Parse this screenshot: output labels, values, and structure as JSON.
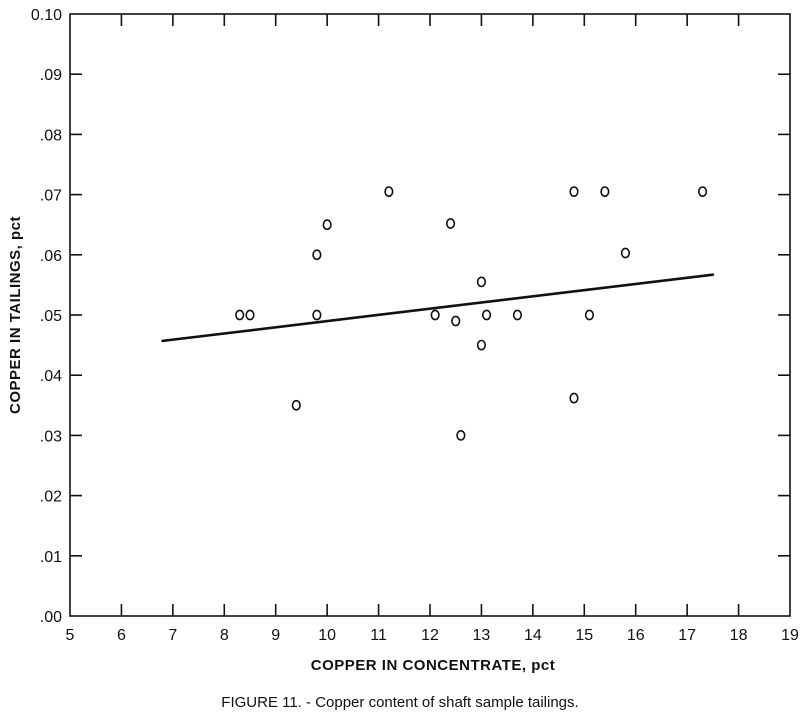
{
  "figure": {
    "caption": "FIGURE 11. - Copper content of shaft sample tailings."
  },
  "chart_data": {
    "type": "scatter",
    "title": "",
    "xlabel": "COPPER IN CONCENTRATE, pct",
    "ylabel": "COPPER IN TAILINGS, pct",
    "xlim": [
      5,
      19
    ],
    "ylim": [
      0.0,
      0.1
    ],
    "x_ticks": [
      5,
      6,
      7,
      8,
      9,
      10,
      11,
      12,
      13,
      14,
      15,
      16,
      17,
      18,
      19
    ],
    "x_tick_labels": [
      "5",
      "6",
      "7",
      "8",
      "9",
      "10",
      "11",
      "12",
      "13",
      "14",
      "15",
      "16",
      "17",
      "18",
      "19"
    ],
    "y_ticks": [
      0.0,
      0.01,
      0.02,
      0.03,
      0.04,
      0.05,
      0.06,
      0.07,
      0.08,
      0.09,
      0.1
    ],
    "y_tick_labels": [
      ".00",
      ".01",
      ".02",
      ".03",
      ".04",
      ".05",
      ".06",
      ".07",
      ".08",
      ".09",
      "0.10"
    ],
    "grid": false,
    "points": [
      {
        "x": 8.3,
        "y": 0.05
      },
      {
        "x": 8.5,
        "y": 0.05
      },
      {
        "x": 9.4,
        "y": 0.035
      },
      {
        "x": 9.8,
        "y": 0.06
      },
      {
        "x": 9.8,
        "y": 0.05
      },
      {
        "x": 10.0,
        "y": 0.065
      },
      {
        "x": 11.2,
        "y": 0.0705
      },
      {
        "x": 12.1,
        "y": 0.05
      },
      {
        "x": 12.4,
        "y": 0.0652
      },
      {
        "x": 12.5,
        "y": 0.049
      },
      {
        "x": 12.6,
        "y": 0.03
      },
      {
        "x": 13.0,
        "y": 0.0555
      },
      {
        "x": 13.0,
        "y": 0.045
      },
      {
        "x": 13.1,
        "y": 0.05
      },
      {
        "x": 13.7,
        "y": 0.05
      },
      {
        "x": 14.8,
        "y": 0.0705
      },
      {
        "x": 14.8,
        "y": 0.0362
      },
      {
        "x": 15.1,
        "y": 0.05
      },
      {
        "x": 15.4,
        "y": 0.0705
      },
      {
        "x": 15.8,
        "y": 0.0603
      },
      {
        "x": 17.3,
        "y": 0.0705
      }
    ],
    "trend_line": {
      "x": [
        6.8,
        17.5
      ],
      "y": [
        0.0457,
        0.0567
      ]
    },
    "colors": {
      "ink": "#111111",
      "background": "#ffffff"
    }
  }
}
